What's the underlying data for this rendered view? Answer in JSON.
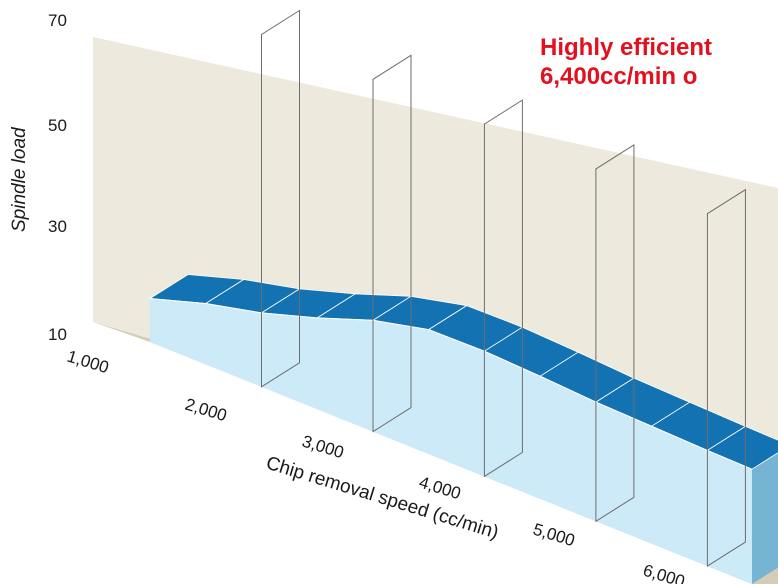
{
  "chart_data": {
    "type": "area",
    "title": "",
    "annotation_lines": [
      "Highly efficient",
      "6,400cc/min o"
    ],
    "xlabel": "Chip removal speed (cc/min)",
    "ylabel": "Spindle load",
    "xlim": [
      1000,
      6400
    ],
    "ylim": [
      10,
      70
    ],
    "x_ticks": [
      "1,000",
      "2,000",
      "3,000",
      "4,000",
      "5,000",
      "6,000"
    ],
    "y_ticks": [
      "10",
      "30",
      "50",
      "70"
    ],
    "x": [
      1000,
      1500,
      2000,
      2500,
      3000,
      3500,
      4000,
      4500,
      5000,
      5500,
      6000,
      6400
    ],
    "values": [
      15,
      17,
      18.5,
      20.5,
      22.8,
      24.3,
      24.4,
      24.1,
      23.7,
      23.5,
      23.3,
      23.2
    ],
    "colors": {
      "surface": "#1372b1",
      "front_face": "#cdeaf9",
      "side_face": "#75b4d2",
      "back_wall": "#ede9dd",
      "floor": "#d4ccb7",
      "annotation": "#e3101e"
    }
  }
}
